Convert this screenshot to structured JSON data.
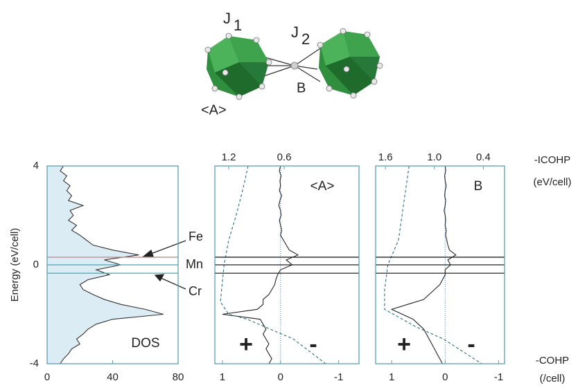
{
  "diagram": {
    "j1": {
      "main": "J",
      "sub": "1"
    },
    "j2": {
      "main": "J",
      "sub": "2"
    },
    "site_a": "<A>",
    "site_b": "B"
  },
  "figure": {
    "ylabel": "Energy (eV/cell)",
    "top_axis_label": [
      "-ICOHP",
      "(eV/cell)"
    ],
    "bottom_axis_label": [
      "-COHP",
      "(/cell)"
    ],
    "levels": [
      {
        "label": "Fe",
        "value": 0.31
      },
      {
        "label": "Mn",
        "value": 0.0
      },
      {
        "label": "Cr",
        "value": -0.34
      }
    ]
  },
  "chart_data": [
    {
      "type": "line",
      "label": "DOS",
      "fill": "#dcecf5",
      "color": "#333333",
      "level_colors": [
        "#c48a94",
        "#4aa5b5",
        "#4aa5b5"
      ],
      "xlim": [
        0,
        80
      ],
      "xticks": [
        0,
        40,
        80
      ],
      "ylim": [
        -4,
        4
      ],
      "yticks": [
        -4,
        0,
        4
      ],
      "y": [
        4.0,
        3.8,
        3.6,
        3.4,
        3.2,
        3.0,
        2.8,
        2.6,
        2.4,
        2.2,
        2.0,
        1.8,
        1.6,
        1.4,
        1.2,
        1.0,
        0.8,
        0.6,
        0.4,
        0.2,
        0.0,
        -0.2,
        -0.4,
        -0.6,
        -0.8,
        -1.0,
        -1.2,
        -1.4,
        -1.6,
        -1.8,
        -2.0,
        -2.2,
        -2.4,
        -2.6,
        -2.8,
        -3.0,
        -3.2,
        -3.4,
        -3.6,
        -3.8,
        -4.0
      ],
      "values": [
        10,
        8,
        12,
        10,
        14,
        12,
        15,
        13,
        22,
        14,
        16,
        13,
        18,
        15,
        20,
        24,
        28,
        40,
        56,
        35,
        45,
        30,
        38,
        25,
        20,
        22,
        28,
        35,
        45,
        60,
        71,
        40,
        30,
        25,
        22,
        18,
        20,
        15,
        13,
        10,
        8
      ]
    },
    {
      "type": "line",
      "label": "<A>",
      "signs": [
        "+",
        "-"
      ],
      "level_colors": [
        "#222222",
        "#222222",
        "#222222"
      ],
      "xlim": [
        1.13,
        -1.35
      ],
      "xticks": [
        1,
        0,
        -1
      ],
      "x2lim": [
        1.35,
        -0.21
      ],
      "x2ticks": [
        1.2,
        0.6
      ],
      "ylim": [
        -4,
        4
      ],
      "series": [
        {
          "color": "#222222",
          "dash": false,
          "y": [
            4.0,
            3.8,
            3.6,
            3.4,
            3.2,
            3.0,
            2.8,
            2.6,
            2.4,
            2.2,
            2.0,
            1.8,
            1.6,
            1.4,
            1.2,
            1.0,
            0.8,
            0.6,
            0.4,
            0.2,
            0.0,
            -0.2,
            -0.4,
            -0.6,
            -0.8,
            -1.0,
            -1.2,
            -1.4,
            -1.6,
            -1.8,
            -2.0,
            -2.2,
            -2.4,
            -2.6,
            -2.8,
            -3.0,
            -3.2,
            -3.4,
            -3.6,
            -3.8,
            -4.0
          ],
          "values": [
            0.0,
            0.02,
            -0.01,
            0.01,
            0.0,
            0.02,
            -0.02,
            0.01,
            0.03,
            0.0,
            -0.01,
            0.02,
            0.0,
            -0.02,
            0.0,
            -0.05,
            -0.1,
            -0.15,
            -0.3,
            -0.1,
            -0.2,
            0.0,
            0.05,
            0.08,
            0.1,
            0.15,
            0.2,
            0.3,
            0.3,
            0.4,
            1.0,
            0.35,
            0.3,
            0.25,
            0.3,
            0.25,
            0.2,
            0.25,
            0.2,
            0.15,
            0.2
          ]
        },
        {
          "color": "#2a6f7a",
          "dash": true,
          "axis": "x2",
          "y": [
            4,
            3,
            2,
            1,
            0,
            -1.5,
            -2,
            -2.2,
            -3,
            -4
          ],
          "values": [
            0.99,
            1.05,
            1.12,
            1.2,
            1.25,
            1.29,
            1.2,
            1.0,
            0.5,
            0.15
          ]
        }
      ]
    },
    {
      "type": "line",
      "label": "B",
      "signs": [
        "+",
        "-"
      ],
      "level_colors": [
        "#222222",
        "#222222",
        "#222222"
      ],
      "xlim": [
        1.3,
        -1.11
      ],
      "xticks": [
        1,
        0,
        -1
      ],
      "x2lim": [
        1.72,
        0.14
      ],
      "x2ticks": [
        1.6,
        {
          "value": 1.0,
          "label": "1.0"
        },
        0.4
      ],
      "ylim": [
        -4,
        4
      ],
      "series": [
        {
          "color": "#222222",
          "dash": false,
          "y": [
            4.0,
            3.8,
            3.6,
            3.4,
            3.2,
            3.0,
            2.8,
            2.6,
            2.4,
            2.2,
            2.0,
            1.8,
            1.6,
            1.4,
            1.2,
            1.0,
            0.8,
            0.6,
            0.4,
            0.2,
            0.0,
            -0.2,
            -0.4,
            -0.6,
            -0.8,
            -1.0,
            -1.2,
            -1.4,
            -1.6,
            -1.8,
            -2.0,
            -2.2,
            -2.4,
            -2.6,
            -2.8,
            -3.0,
            -3.2,
            -3.4,
            -3.6,
            -3.8,
            -4.0
          ],
          "values": [
            0.0,
            -0.01,
            0.01,
            0.0,
            -0.02,
            0.0,
            0.01,
            -0.01,
            0.0,
            0.02,
            0.0,
            -0.01,
            0.0,
            -0.02,
            -0.01,
            -0.03,
            -0.05,
            -0.08,
            -0.2,
            -0.05,
            -0.1,
            0.0,
            0.0,
            0.05,
            0.1,
            0.2,
            0.3,
            0.4,
            0.7,
            1.0,
            0.8,
            0.6,
            0.5,
            0.4,
            0.35,
            0.3,
            0.25,
            0.2,
            0.15,
            0.1,
            0.05
          ]
        },
        {
          "color": "#2a6f7a",
          "dash": true,
          "axis": "x2",
          "y": [
            4,
            1,
            0,
            -1,
            -1.8,
            -2.5,
            -3,
            -4
          ],
          "values": [
            1.31,
            1.44,
            1.57,
            1.61,
            1.61,
            1.23,
            0.89,
            0.42
          ]
        }
      ]
    }
  ]
}
